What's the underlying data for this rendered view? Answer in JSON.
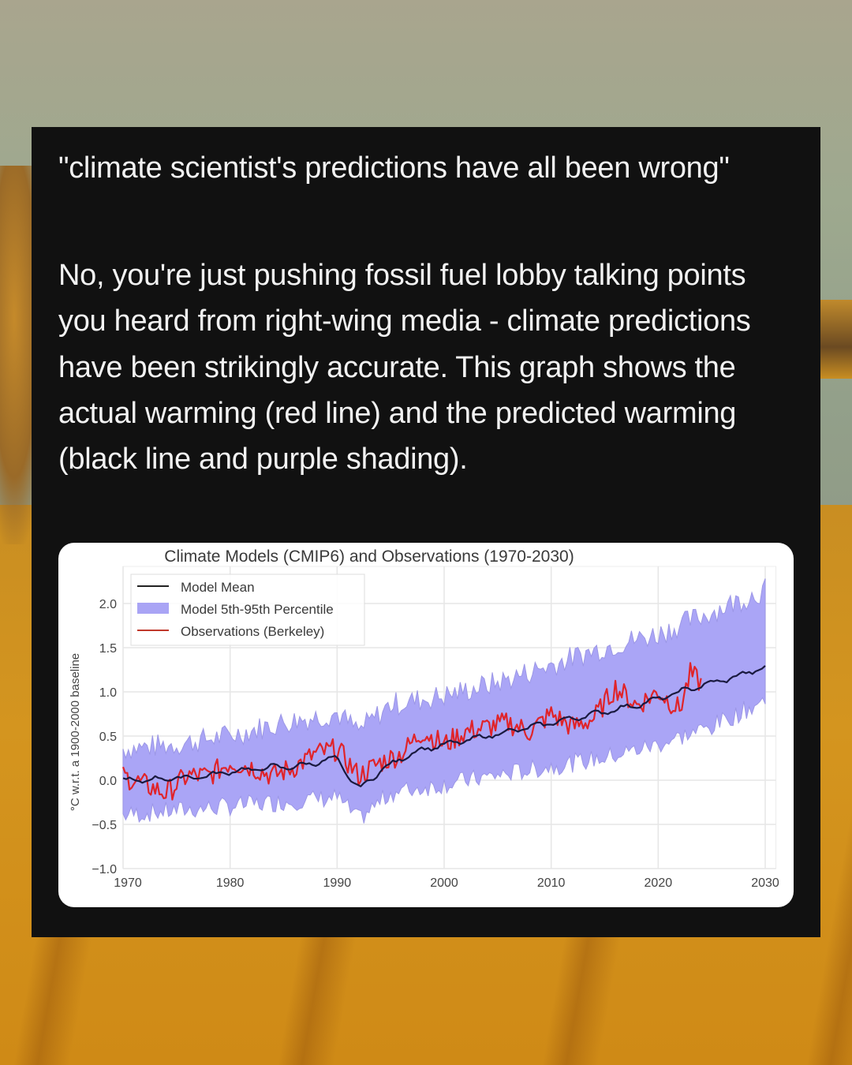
{
  "post": {
    "quote": "\"climate scientist's predictions have all been wrong\"",
    "reply": "No, you're just pushing fossil fuel lobby talking points you heard from right-wing media - climate predictions have been strikingly accurate. This graph shows the actual warming (red line) and the predicted warming (black line and purple shading)."
  },
  "colors": {
    "card_bg": "#111111",
    "text": "#f2f2f2",
    "model_mean": "#1a1a40",
    "band": "#a9a4f5",
    "observations": "#e0242a",
    "grid": "#e6e6e6"
  },
  "chart_data": {
    "type": "line",
    "title": "Climate Models (CMIP6) and Observations (1970-2030)",
    "xlabel": "",
    "ylabel": "°C w.r.t. a 1900-2000 baseline",
    "xlim": [
      1970,
      2031
    ],
    "ylim": [
      -1.0,
      2.3
    ],
    "x_ticks": [
      "1970",
      "1980",
      "1990",
      "2000",
      "2010",
      "2020",
      "2030"
    ],
    "y_ticks": [
      "2.0",
      "1.5",
      "1.0",
      "0.5",
      "0.0",
      "−0.5",
      "−1.0"
    ],
    "grid": true,
    "legend": {
      "position": "upper left",
      "entries": [
        "Model Mean",
        "Model 5th-95th Percentile",
        "Observations (Berkeley)"
      ]
    },
    "series": [
      {
        "name": "Model Mean",
        "type": "line",
        "x": [
          1970,
          1972,
          1974,
          1976,
          1978,
          1980,
          1982,
          1984,
          1986,
          1988,
          1990,
          1991,
          1992,
          1993,
          1994,
          1996,
          1998,
          2000,
          2002,
          2004,
          2006,
          2008,
          2010,
          2012,
          2014,
          2016,
          2018,
          2020,
          2022,
          2024,
          2026,
          2028,
          2030
        ],
        "values": [
          0.0,
          0.0,
          0.02,
          0.03,
          0.05,
          0.1,
          0.12,
          0.15,
          0.15,
          0.2,
          0.25,
          0.05,
          -0.1,
          0.0,
          0.1,
          0.25,
          0.35,
          0.4,
          0.45,
          0.5,
          0.55,
          0.6,
          0.65,
          0.7,
          0.75,
          0.8,
          0.85,
          0.92,
          1.0,
          1.07,
          1.13,
          1.2,
          1.28
        ]
      },
      {
        "name": "Model 5th-95th Percentile",
        "type": "band",
        "x": [
          1970,
          1975,
          1980,
          1985,
          1990,
          1992,
          1995,
          2000,
          2005,
          2010,
          2015,
          2020,
          2025,
          2030
        ],
        "lower": [
          -0.35,
          -0.3,
          -0.25,
          -0.2,
          -0.15,
          -0.4,
          -0.1,
          0.0,
          0.1,
          0.2,
          0.3,
          0.45,
          0.65,
          0.95
        ],
        "upper": [
          0.3,
          0.35,
          0.45,
          0.6,
          0.7,
          0.5,
          0.8,
          0.9,
          1.05,
          1.25,
          1.45,
          1.6,
          1.85,
          2.1
        ]
      },
      {
        "name": "Observations (Berkeley)",
        "type": "line",
        "x": [
          1970,
          1972,
          1974,
          1976,
          1978,
          1980,
          1982,
          1984,
          1986,
          1988,
          1990,
          1992,
          1994,
          1996,
          1998,
          2000,
          2002,
          2004,
          2006,
          2008,
          2010,
          2012,
          2014,
          2016,
          2018,
          2020,
          2022,
          2023,
          2024
        ],
        "values": [
          0.05,
          -0.05,
          -0.15,
          0.05,
          0.05,
          0.2,
          0.15,
          0.05,
          0.15,
          0.3,
          0.35,
          0.05,
          0.2,
          0.3,
          0.55,
          0.4,
          0.55,
          0.6,
          0.65,
          0.55,
          0.75,
          0.6,
          0.7,
          1.05,
          0.85,
          1.0,
          0.8,
          1.2,
          1.1
        ]
      }
    ]
  }
}
